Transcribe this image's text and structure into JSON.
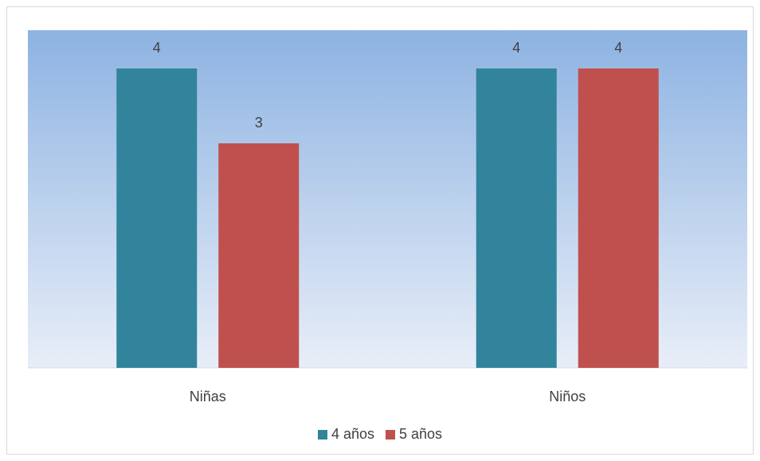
{
  "chart_data": {
    "type": "bar",
    "categories": [
      "Niñas",
      "Niños"
    ],
    "series": [
      {
        "name": "4 años",
        "values": [
          4,
          4
        ],
        "color": "#31849B"
      },
      {
        "name": "5 años",
        "values": [
          3,
          4
        ],
        "color": "#C0504D"
      }
    ],
    "title": "",
    "xlabel": "",
    "ylabel": "",
    "ylim": [
      0,
      4.5
    ],
    "grid": false,
    "data_labels": true,
    "legend_position": "bottom",
    "plot_background": {
      "top": "#8DB3E2",
      "bottom": "#E8EEF8"
    }
  }
}
